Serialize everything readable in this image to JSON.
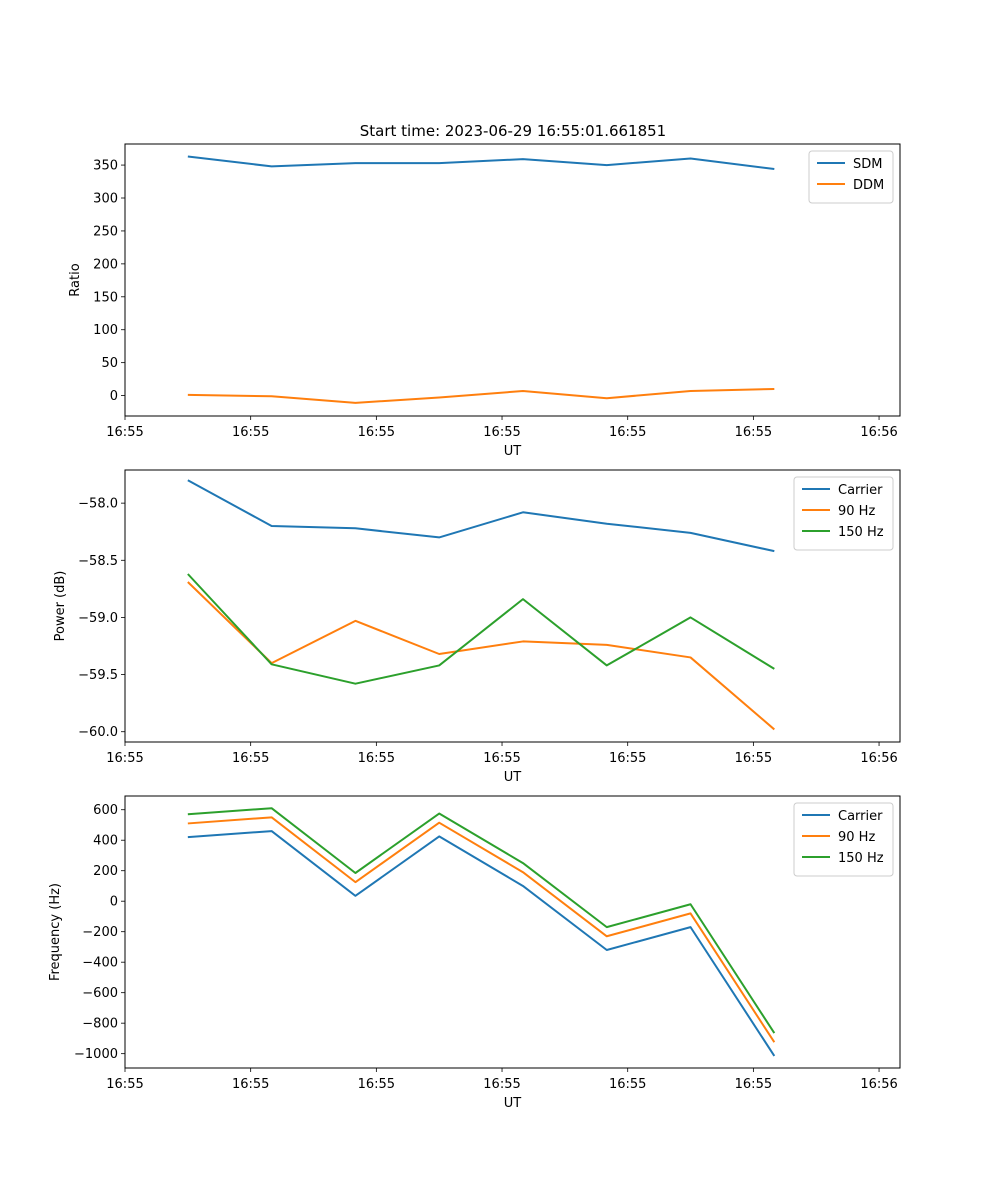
{
  "figure_title": "Start time: 2023-06-29 16:55:01.661851",
  "chart_data": [
    {
      "type": "line",
      "title": "Start time: 2023-06-29 16:55:01.661851",
      "xlabel": "UT",
      "ylabel": "Ratio",
      "xlim": [
        -0.75,
        8.5
      ],
      "ylim": [
        -31,
        382
      ],
      "x": [
        0,
        1,
        2,
        3,
        4,
        5,
        6,
        7
      ],
      "x_tick_positions": [
        -0.75,
        0.75,
        2.25,
        3.75,
        5.25,
        6.75,
        8.25
      ],
      "x_tick_labels": [
        "16:55",
        "16:55",
        "16:55",
        "16:55",
        "16:55",
        "16:55",
        "16:56"
      ],
      "y_ticks": [
        0,
        50,
        100,
        150,
        200,
        250,
        300,
        350
      ],
      "legend_position": "upper right",
      "series": [
        {
          "name": "SDM",
          "color": "#1f77b4",
          "values": [
            363,
            348,
            353,
            353,
            359,
            350,
            360,
            344
          ]
        },
        {
          "name": "DDM",
          "color": "#ff7f0e",
          "values": [
            1,
            -1,
            -11,
            -3,
            7,
            -4,
            7,
            10
          ]
        }
      ]
    },
    {
      "type": "line",
      "title": "",
      "xlabel": "UT",
      "ylabel": "Power (dB)",
      "xlim": [
        -0.75,
        8.5
      ],
      "ylim": [
        -60.09,
        -57.71
      ],
      "x": [
        0,
        1,
        2,
        3,
        4,
        5,
        6,
        7
      ],
      "x_tick_positions": [
        -0.75,
        0.75,
        2.25,
        3.75,
        5.25,
        6.75,
        8.25
      ],
      "x_tick_labels": [
        "16:55",
        "16:55",
        "16:55",
        "16:55",
        "16:55",
        "16:55",
        "16:56"
      ],
      "y_ticks": [
        -60.0,
        -59.5,
        -59.0,
        -58.5,
        -58.0
      ],
      "legend_position": "upper right",
      "series": [
        {
          "name": "Carrier",
          "color": "#1f77b4",
          "values": [
            -57.8,
            -58.2,
            -58.22,
            -58.3,
            -58.08,
            -58.18,
            -58.26,
            -58.42
          ]
        },
        {
          "name": "90 Hz",
          "color": "#ff7f0e",
          "values": [
            -58.69,
            -59.4,
            -59.03,
            -59.32,
            -59.21,
            -59.24,
            -59.35,
            -59.98
          ]
        },
        {
          "name": "150 Hz",
          "color": "#2ca02c",
          "values": [
            -58.62,
            -59.41,
            -59.58,
            -59.42,
            -58.84,
            -59.42,
            -59.0,
            -59.45
          ]
        }
      ]
    },
    {
      "type": "line",
      "title": "",
      "xlabel": "UT",
      "ylabel": "Frequency (Hz)",
      "xlim": [
        -0.75,
        8.5
      ],
      "ylim": [
        -1094,
        690
      ],
      "x": [
        0,
        1,
        2,
        3,
        4,
        5,
        6,
        7
      ],
      "x_tick_positions": [
        -0.75,
        0.75,
        2.25,
        3.75,
        5.25,
        6.75,
        8.25
      ],
      "x_tick_labels": [
        "16:55",
        "16:55",
        "16:55",
        "16:55",
        "16:55",
        "16:55",
        "16:56"
      ],
      "y_ticks": [
        -1000,
        -800,
        -600,
        -400,
        -200,
        0,
        200,
        400,
        600
      ],
      "legend_position": "upper right",
      "series": [
        {
          "name": "Carrier",
          "color": "#1f77b4",
          "values": [
            420,
            460,
            35,
            425,
            100,
            -320,
            -170,
            -1015
          ]
        },
        {
          "name": "90 Hz",
          "color": "#ff7f0e",
          "values": [
            510,
            550,
            125,
            515,
            190,
            -230,
            -80,
            -925
          ]
        },
        {
          "name": "150 Hz",
          "color": "#2ca02c",
          "values": [
            570,
            610,
            185,
            575,
            250,
            -170,
            -20,
            -865
          ]
        }
      ]
    }
  ]
}
